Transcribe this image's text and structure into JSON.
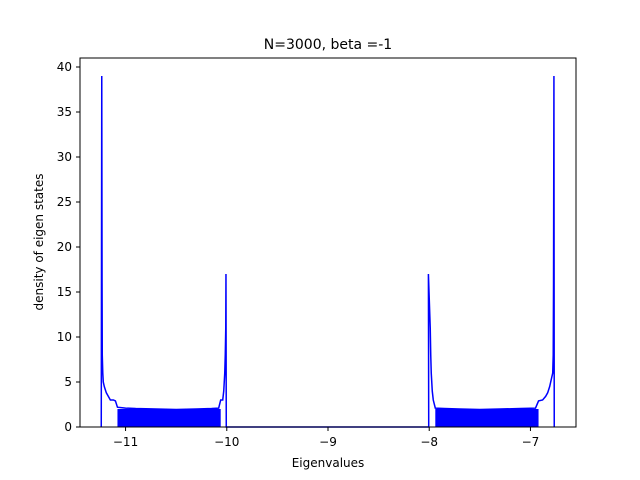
{
  "chart_data": {
    "type": "line",
    "title": "N=3000, beta =-1",
    "xlabel": "Eigenvalues",
    "ylabel": "density of eigen states",
    "xlim": [
      -11.45,
      -6.55
    ],
    "ylim": [
      0,
      41
    ],
    "xticks": [
      {
        "value": -11,
        "label": "−11"
      },
      {
        "value": -10,
        "label": "−10"
      },
      {
        "value": -9,
        "label": "−9"
      },
      {
        "value": -8,
        "label": "−8"
      },
      {
        "value": -7,
        "label": "−7"
      }
    ],
    "yticks": [
      {
        "value": 0,
        "label": "0"
      },
      {
        "value": 5,
        "label": "5"
      },
      {
        "value": 10,
        "label": "10"
      },
      {
        "value": 15,
        "label": "15"
      },
      {
        "value": 20,
        "label": "20"
      },
      {
        "value": 25,
        "label": "25"
      },
      {
        "value": 30,
        "label": "30"
      },
      {
        "value": 35,
        "label": "35"
      },
      {
        "value": 40,
        "label": "40"
      }
    ],
    "grid": false,
    "series": [
      {
        "color": "#0000ff",
        "points": [
          [
            -11.24,
            0
          ],
          [
            -11.235,
            39
          ],
          [
            -11.232,
            16
          ],
          [
            -11.23,
            8
          ],
          [
            -11.225,
            6
          ],
          [
            -11.22,
            5
          ],
          [
            -11.21,
            4.5
          ],
          [
            -11.19,
            3.8
          ],
          [
            -11.17,
            3.4
          ],
          [
            -11.15,
            3.0
          ],
          [
            -11.12,
            3.0
          ],
          [
            -11.1,
            2.9
          ],
          [
            -11.08,
            2.2
          ],
          [
            -11.0,
            2.1
          ],
          [
            -10.9,
            2.05
          ],
          [
            -10.7,
            2.0
          ],
          [
            -10.5,
            1.95
          ],
          [
            -10.3,
            2.0
          ],
          [
            -10.15,
            2.05
          ],
          [
            -10.08,
            2.1
          ],
          [
            -10.06,
            3.0
          ],
          [
            -10.04,
            3.0
          ],
          [
            -10.03,
            4.0
          ],
          [
            -10.02,
            6.0
          ],
          [
            -10.015,
            8
          ],
          [
            -10.01,
            11
          ],
          [
            -10.008,
            17
          ],
          [
            -10.005,
            0
          ],
          [
            -8.005,
            0
          ],
          [
            -8.008,
            17
          ],
          [
            -7.99,
            11
          ],
          [
            -7.985,
            8
          ],
          [
            -7.98,
            6.0
          ],
          [
            -7.97,
            4.0
          ],
          [
            -7.96,
            3.0
          ],
          [
            -7.94,
            2.1
          ],
          [
            -7.85,
            2.05
          ],
          [
            -7.7,
            2.0
          ],
          [
            -7.5,
            1.95
          ],
          [
            -7.3,
            2.0
          ],
          [
            -7.1,
            2.05
          ],
          [
            -6.95,
            2.1
          ],
          [
            -6.92,
            2.9
          ],
          [
            -6.88,
            3.0
          ],
          [
            -6.85,
            3.4
          ],
          [
            -6.83,
            3.8
          ],
          [
            -6.81,
            4.5
          ],
          [
            -6.8,
            5
          ],
          [
            -6.78,
            6
          ],
          [
            -6.775,
            8
          ],
          [
            -6.772,
            16
          ],
          [
            -6.768,
            39
          ],
          [
            -6.765,
            0
          ]
        ]
      }
    ]
  }
}
